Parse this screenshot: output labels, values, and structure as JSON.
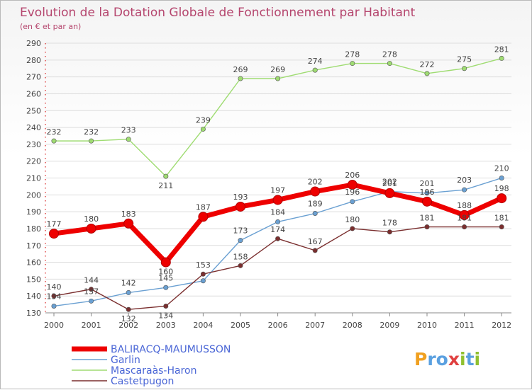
{
  "chart_data": {
    "type": "line",
    "title": "Evolution de la Dotation Globale de Fonctionnement par Habitant",
    "subtitle": "(en € et par an)",
    "xlabel": "",
    "ylabel": "",
    "categories": [
      "2000",
      "2001",
      "2002",
      "2003",
      "2004",
      "2005",
      "2006",
      "2007",
      "2008",
      "2009",
      "2010",
      "2011",
      "2012"
    ],
    "ylim": [
      130,
      290
    ],
    "yticks": [
      130,
      140,
      150,
      160,
      170,
      180,
      190,
      200,
      210,
      220,
      230,
      240,
      250,
      260,
      270,
      280,
      290
    ],
    "grid": "horizontal",
    "legend_position": "bottom-left",
    "series": [
      {
        "name": "BALIRACQ-MAUMUSSON",
        "color": "#ee0000",
        "values": [
          177,
          180,
          183,
          160,
          187,
          193,
          197,
          202,
          206,
          201,
          196,
          188,
          198
        ],
        "labels": [
          "177",
          "180",
          "183",
          "160",
          "187",
          "193",
          "197",
          "202",
          "206",
          "201",
          "196",
          "188",
          "198"
        ]
      },
      {
        "name": "Garlin",
        "color": "#6aa0d2",
        "values": [
          134,
          137,
          142,
          145,
          149,
          173,
          184,
          189,
          196,
          202,
          201,
          203,
          210
        ],
        "labels": [
          "134",
          "137",
          "142",
          "145",
          "",
          "173",
          "184",
          "189",
          "196",
          "202",
          "201",
          "203",
          "210"
        ]
      },
      {
        "name": "Mascaraàs-Haron",
        "color": "#9fdc72",
        "values": [
          232,
          232,
          233,
          211,
          239,
          269,
          269,
          274,
          278,
          278,
          272,
          275,
          281
        ],
        "labels": [
          "232",
          "232",
          "233",
          "211",
          "239",
          "269",
          "269",
          "274",
          "278",
          "278",
          "272",
          "275",
          "281"
        ]
      },
      {
        "name": "Castetpugon",
        "color": "#7a2e2e",
        "values": [
          140,
          144,
          132,
          134,
          153,
          158,
          174,
          167,
          180,
          178,
          181,
          181,
          181
        ],
        "labels": [
          "140",
          "144",
          "132",
          "134",
          "153",
          "158",
          "174",
          "167",
          "180",
          "178",
          "181",
          "181",
          "181"
        ]
      }
    ]
  },
  "legend": {
    "items": [
      "BALIRACQ-MAUMUSSON",
      "Garlin",
      "Mascaraàs-Haron",
      "Castetpugon"
    ]
  },
  "branding": {
    "logo_text": "Proxiti"
  },
  "colors": {
    "title": "#b5466e",
    "grid": "#dddddd",
    "axis": "#888888",
    "legend_text": "#4a66d6"
  }
}
